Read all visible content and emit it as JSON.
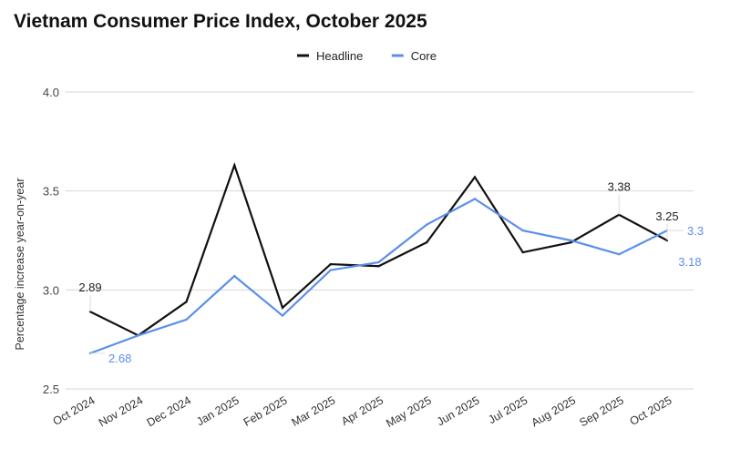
{
  "chart_data": {
    "type": "line",
    "title": "Vietnam Consumer Price Index, October 2025",
    "ylabel": "Percentage increase year-on-year",
    "xlabel": "",
    "ylim": [
      2.5,
      4.0
    ],
    "yticks": [
      "2.5",
      "3.0",
      "3.5",
      "4.0"
    ],
    "grid": true,
    "legend": "top-center",
    "categories": [
      "Oct 2024",
      "Nov 2024",
      "Dec 2024",
      "Jan 2025",
      "Feb 2025",
      "Mar 2025",
      "Apr 2025",
      "May 2025",
      "Jun 2025",
      "Jul 2025",
      "Aug 2025",
      "Sep 2025",
      "Oct 2025"
    ],
    "series": [
      {
        "name": "Headline",
        "color": "#111111",
        "values": [
          2.89,
          2.77,
          2.94,
          3.63,
          2.91,
          3.13,
          3.12,
          3.24,
          3.57,
          3.19,
          3.24,
          3.38,
          3.25
        ]
      },
      {
        "name": "Core",
        "color": "#5b8fea",
        "values": [
          2.68,
          2.77,
          2.85,
          3.07,
          2.87,
          3.1,
          3.14,
          3.33,
          3.46,
          3.3,
          3.25,
          3.18,
          3.3
        ]
      }
    ],
    "data_labels": [
      {
        "series": "Headline",
        "index": 0,
        "text": "2.89"
      },
      {
        "series": "Core",
        "index": 0,
        "text": "2.68"
      },
      {
        "series": "Headline",
        "index": 11,
        "text": "3.38"
      },
      {
        "series": "Headline",
        "index": 12,
        "text": "3.25"
      },
      {
        "series": "Core",
        "index": 12,
        "text": "3.3"
      },
      {
        "series": "Core",
        "index": 11,
        "text": "3.18"
      }
    ]
  }
}
